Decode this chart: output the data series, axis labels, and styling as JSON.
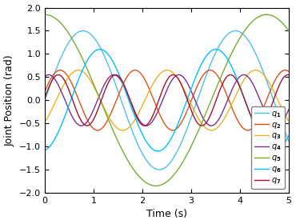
{
  "title": "",
  "xlabel": "Time (s)",
  "ylabel": "Joint Position (rad)",
  "xlim": [
    0,
    5
  ],
  "ylim": [
    -2,
    2
  ],
  "xticks": [
    0,
    1,
    2,
    3,
    4,
    5
  ],
  "yticks": [
    -2,
    -1.5,
    -1,
    -0.5,
    0,
    0.5,
    1,
    1.5,
    2
  ],
  "figsize": [
    3.7,
    2.8
  ],
  "dpi": 100,
  "curves": [
    {
      "label": "$q_1$",
      "color": "#4DBEEE",
      "amplitude": 1.5,
      "freq_hz": 0.32,
      "phase": 0.0
    },
    {
      "label": "$q_2$",
      "color": "#D95319",
      "amplitude": 0.65,
      "freq_hz": 0.65,
      "phase": 0.3
    },
    {
      "label": "$q_3$",
      "color": "#EDB120",
      "amplitude": 0.65,
      "freq_hz": 0.55,
      "phase": -0.8
    },
    {
      "label": "$q_4$",
      "color": "#7E2F8E",
      "amplitude": 0.55,
      "freq_hz": 0.75,
      "phase": 1.2
    },
    {
      "label": "$q_5$",
      "color": "#77AC30",
      "amplitude": 1.85,
      "freq_hz": 0.22,
      "phase": 1.57
    },
    {
      "label": "$q_6$",
      "color": "#4DBEEE",
      "amplitude": 1.1,
      "freq_hz": 0.42,
      "phase": -1.4
    },
    {
      "label": "$q_7$",
      "color": "#A2142F",
      "amplitude": 0.55,
      "freq_hz": 0.85,
      "phase": 0.1
    }
  ],
  "legend_loc": "lower right",
  "legend_fontsize": 7,
  "axis_fontsize": 9,
  "tick_fontsize": 8,
  "linewidth": 1.0
}
